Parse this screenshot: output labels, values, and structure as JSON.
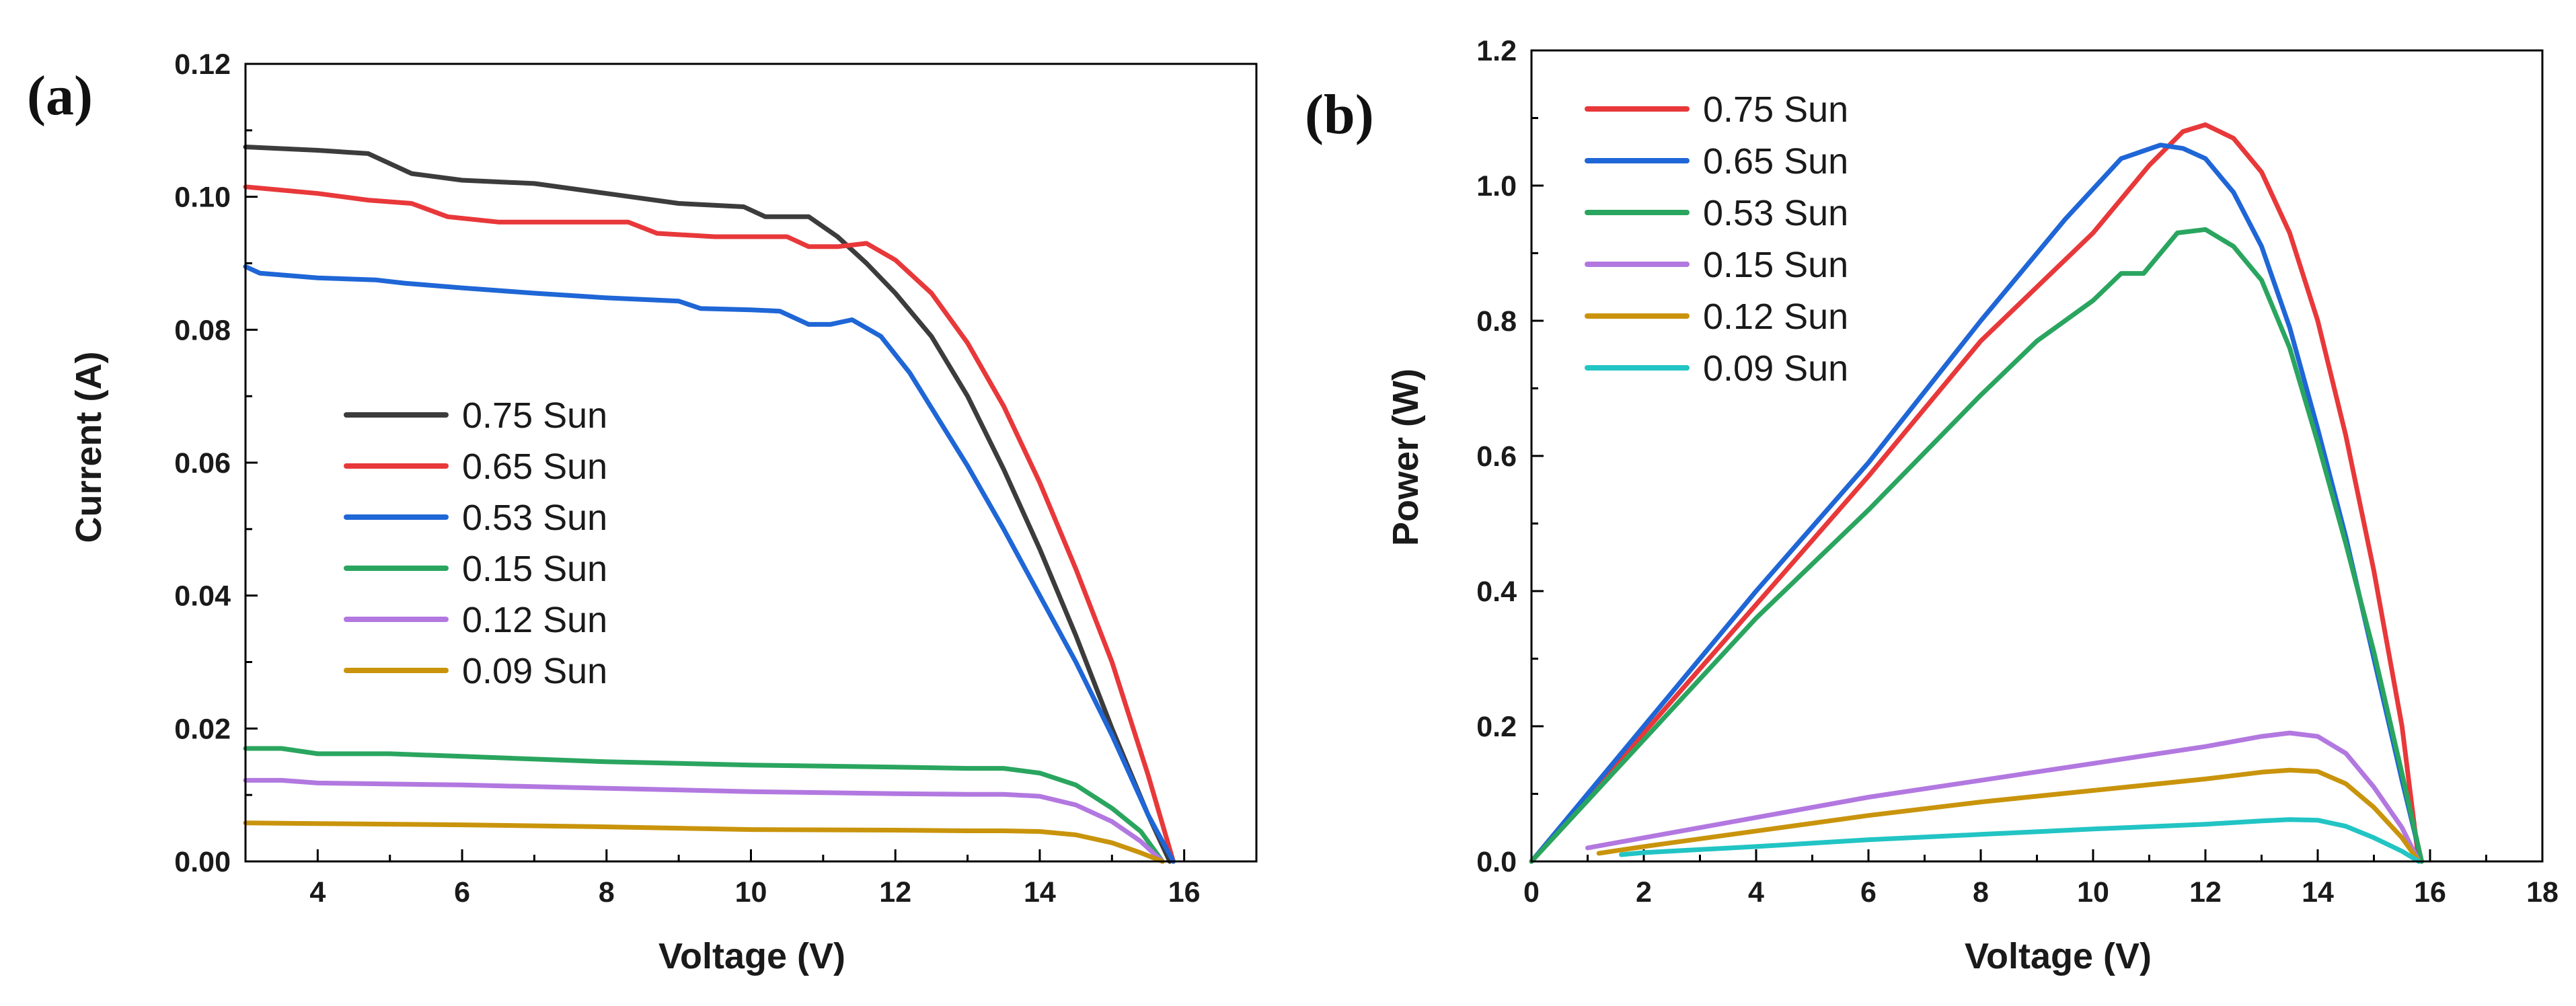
{
  "chart_data": [
    {
      "panel_label": "(a)",
      "type": "line",
      "title": "",
      "xlabel": "Voltage (V)",
      "ylabel": "Current (A)",
      "xlim": [
        3,
        17
      ],
      "ylim": [
        0,
        0.12
      ],
      "xticks": [
        4,
        6,
        8,
        10,
        12,
        14,
        16
      ],
      "yticks": [
        0.0,
        0.02,
        0.04,
        0.06,
        0.08,
        0.1,
        0.12
      ],
      "xtick_labels": [
        "4",
        "6",
        "8",
        "10",
        "12",
        "14",
        "16"
      ],
      "ytick_labels": [
        "0.00",
        "0.02",
        "0.04",
        "0.06",
        "0.08",
        "0.10",
        "0.12"
      ],
      "grid": false,
      "legend_position": "lower-left",
      "series": [
        {
          "name": "0.75 Sun",
          "color": "#3c3c3c",
          "x": [
            3.0,
            4.0,
            4.7,
            5.3,
            6.0,
            7.0,
            8.0,
            9.0,
            9.9,
            10.2,
            10.8,
            11.2,
            11.6,
            12.0,
            12.5,
            13.0,
            13.5,
            14.0,
            14.5,
            15.0,
            15.5,
            15.8
          ],
          "y": [
            0.1075,
            0.107,
            0.1065,
            0.1035,
            0.1025,
            0.102,
            0.1005,
            0.099,
            0.0985,
            0.097,
            0.097,
            0.094,
            0.09,
            0.0855,
            0.079,
            0.07,
            0.059,
            0.047,
            0.034,
            0.02,
            0.007,
            0.0
          ]
        },
        {
          "name": "0.65 Sun",
          "color": "#e8383a",
          "x": [
            3.0,
            4.0,
            4.7,
            5.3,
            5.8,
            6.5,
            7.5,
            8.3,
            8.7,
            9.5,
            10.5,
            10.8,
            11.2,
            11.6,
            12.0,
            12.5,
            13.0,
            13.5,
            14.0,
            14.5,
            15.0,
            15.5,
            15.85
          ],
          "y": [
            0.1015,
            0.1005,
            0.0995,
            0.099,
            0.097,
            0.0962,
            0.0962,
            0.0962,
            0.0945,
            0.094,
            0.094,
            0.0925,
            0.0925,
            0.093,
            0.0905,
            0.0855,
            0.078,
            0.0685,
            0.057,
            0.044,
            0.03,
            0.013,
            0.0
          ]
        },
        {
          "name": "0.53 Sun",
          "color": "#1f66d6",
          "x": [
            3.0,
            3.2,
            4.0,
            4.8,
            5.2,
            6.0,
            7.0,
            8.0,
            9.0,
            9.3,
            10.0,
            10.4,
            10.8,
            11.1,
            11.4,
            11.8,
            12.2,
            12.6,
            13.0,
            13.5,
            14.0,
            14.5,
            15.0,
            15.5,
            15.85
          ],
          "y": [
            0.0895,
            0.0885,
            0.0878,
            0.0875,
            0.087,
            0.0863,
            0.0855,
            0.0848,
            0.0843,
            0.0832,
            0.083,
            0.0828,
            0.0808,
            0.0808,
            0.0815,
            0.079,
            0.0735,
            0.0665,
            0.0595,
            0.05,
            0.04,
            0.03,
            0.019,
            0.007,
            0.0
          ]
        },
        {
          "name": "0.15 Sun",
          "color": "#2aa55f",
          "x": [
            3.0,
            3.5,
            4.0,
            5.0,
            6.0,
            8.0,
            10.0,
            12.0,
            13.0,
            13.5,
            14.0,
            14.5,
            15.0,
            15.4,
            15.7
          ],
          "y": [
            0.017,
            0.017,
            0.0162,
            0.0162,
            0.0158,
            0.015,
            0.0145,
            0.0142,
            0.014,
            0.014,
            0.0133,
            0.0115,
            0.008,
            0.0045,
            0.0
          ]
        },
        {
          "name": "0.12 Sun",
          "color": "#b278e0",
          "x": [
            3.0,
            3.5,
            4.0,
            6.0,
            8.0,
            10.0,
            12.0,
            13.0,
            13.5,
            14.0,
            14.5,
            15.0,
            15.4,
            15.7
          ],
          "y": [
            0.0122,
            0.0122,
            0.0118,
            0.0115,
            0.011,
            0.0105,
            0.0102,
            0.0101,
            0.0101,
            0.0098,
            0.0085,
            0.006,
            0.003,
            0.0
          ]
        },
        {
          "name": "0.09 Sun",
          "color": "#c9940c",
          "x": [
            3.0,
            4.0,
            6.0,
            8.0,
            10.0,
            12.0,
            13.0,
            13.5,
            14.0,
            14.5,
            15.0,
            15.4,
            15.7
          ],
          "y": [
            0.0058,
            0.0057,
            0.0055,
            0.0052,
            0.0048,
            0.0047,
            0.0046,
            0.0046,
            0.0045,
            0.004,
            0.0028,
            0.0013,
            0.0
          ]
        }
      ]
    },
    {
      "panel_label": "(b)",
      "type": "line",
      "title": "",
      "xlabel": "Voltage (V)",
      "ylabel": "Power (W)",
      "xlim": [
        0,
        18
      ],
      "ylim": [
        0,
        1.2
      ],
      "xticks": [
        0,
        2,
        4,
        6,
        8,
        10,
        12,
        14,
        16,
        18
      ],
      "yticks": [
        0.0,
        0.2,
        0.4,
        0.6,
        0.8,
        1.0,
        1.2
      ],
      "xtick_labels": [
        "0",
        "2",
        "4",
        "6",
        "8",
        "10",
        "12",
        "14",
        "16",
        "18"
      ],
      "ytick_labels": [
        "0.0",
        "0.2",
        "0.4",
        "0.6",
        "0.8",
        "1.0",
        "1.2"
      ],
      "grid": false,
      "legend_position": "top-left",
      "series": [
        {
          "name": "0.75 Sun",
          "color": "#e8383a",
          "x": [
            0.0,
            2.0,
            4.0,
            6.0,
            8.0,
            10.0,
            11.0,
            11.6,
            12.0,
            12.5,
            13.0,
            13.5,
            14.0,
            14.5,
            15.0,
            15.5,
            15.8
          ],
          "y": [
            0.0,
            0.19,
            0.38,
            0.57,
            0.77,
            0.93,
            1.03,
            1.08,
            1.09,
            1.07,
            1.02,
            0.93,
            0.8,
            0.63,
            0.43,
            0.2,
            0.0
          ]
        },
        {
          "name": "0.65 Sun",
          "color": "#1f66d6",
          "x": [
            0.0,
            2.0,
            4.0,
            6.0,
            8.0,
            9.5,
            10.5,
            11.2,
            11.6,
            12.0,
            12.5,
            13.0,
            13.5,
            14.0,
            14.5,
            15.0,
            15.5,
            15.85
          ],
          "y": [
            0.0,
            0.2,
            0.4,
            0.59,
            0.8,
            0.95,
            1.04,
            1.06,
            1.055,
            1.04,
            0.99,
            0.91,
            0.79,
            0.64,
            0.48,
            0.3,
            0.12,
            0.0
          ]
        },
        {
          "name": "0.53 Sun",
          "color": "#2aa55f",
          "x": [
            0.0,
            2.0,
            4.0,
            6.0,
            8.0,
            9.0,
            10.0,
            10.5,
            10.9,
            11.5,
            12.0,
            12.5,
            13.0,
            13.5,
            14.0,
            14.5,
            15.0,
            15.5,
            15.85
          ],
          "y": [
            0.0,
            0.18,
            0.36,
            0.52,
            0.69,
            0.77,
            0.83,
            0.87,
            0.87,
            0.93,
            0.935,
            0.91,
            0.86,
            0.76,
            0.62,
            0.47,
            0.31,
            0.13,
            0.0
          ]
        },
        {
          "name": "0.15 Sun",
          "color": "#b278e0",
          "x": [
            1.0,
            2.0,
            4.0,
            6.0,
            8.0,
            10.0,
            12.0,
            13.0,
            13.5,
            14.0,
            14.5,
            15.0,
            15.5,
            15.8
          ],
          "y": [
            0.02,
            0.035,
            0.065,
            0.095,
            0.12,
            0.145,
            0.17,
            0.185,
            0.19,
            0.185,
            0.16,
            0.11,
            0.05,
            0.0
          ]
        },
        {
          "name": "0.12 Sun",
          "color": "#c9940c",
          "x": [
            1.2,
            2.0,
            4.0,
            6.0,
            8.0,
            10.0,
            12.0,
            13.0,
            13.5,
            14.0,
            14.5,
            15.0,
            15.5,
            15.8
          ],
          "y": [
            0.012,
            0.022,
            0.045,
            0.068,
            0.088,
            0.105,
            0.122,
            0.132,
            0.135,
            0.133,
            0.115,
            0.08,
            0.035,
            0.0
          ]
        },
        {
          "name": "0.09 Sun",
          "color": "#22c4c4",
          "x": [
            1.6,
            2.0,
            4.0,
            6.0,
            8.0,
            10.0,
            12.0,
            13.0,
            13.5,
            14.0,
            14.5,
            15.0,
            15.5,
            15.8
          ],
          "y": [
            0.01,
            0.013,
            0.022,
            0.032,
            0.04,
            0.048,
            0.055,
            0.06,
            0.062,
            0.061,
            0.052,
            0.035,
            0.015,
            0.0
          ]
        }
      ]
    }
  ]
}
